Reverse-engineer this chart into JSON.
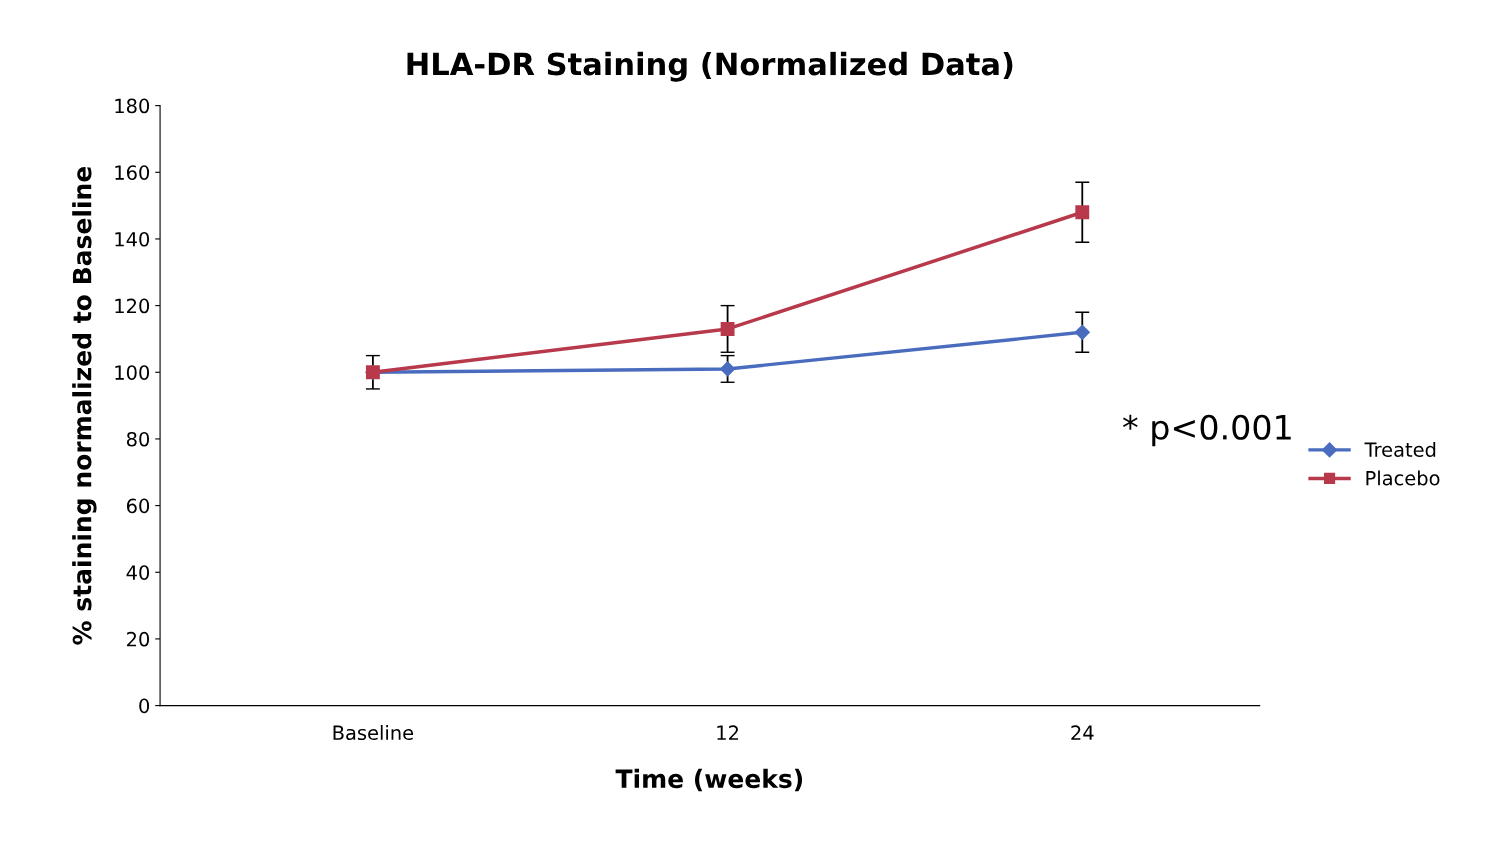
{
  "chart_data": {
    "type": "line",
    "title": "HLA-DR Staining (Normalized Data)",
    "xlabel": "Time (weeks)",
    "ylabel": "% staining normalized to Baseline",
    "categories": [
      "Baseline",
      "12",
      "24"
    ],
    "series": [
      {
        "name": "Treated",
        "color": "#4a6cbf",
        "marker": "diamond",
        "values": [
          100,
          101,
          112
        ],
        "errors": [
          5,
          4,
          6
        ]
      },
      {
        "name": "Placebo",
        "color": "#b8394b",
        "marker": "square",
        "values": [
          100,
          113,
          148
        ],
        "errors": [
          null,
          7,
          9
        ]
      }
    ],
    "ylim": [
      0,
      180
    ],
    "yticks": [
      0,
      20,
      40,
      60,
      80,
      100,
      120,
      140,
      160,
      180
    ],
    "grid": false,
    "legend": "right",
    "line_style": "solid",
    "annotations": [
      "* p<0.001"
    ]
  }
}
